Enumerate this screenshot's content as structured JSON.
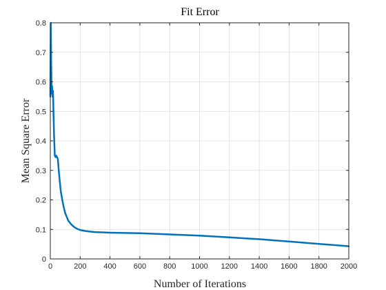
{
  "chart_data": {
    "type": "line",
    "title": "Fit Error",
    "xlabel": "Number of Iterations",
    "ylabel": "Mean Square Error",
    "xlim": [
      0,
      2000
    ],
    "ylim": [
      0,
      0.8
    ],
    "xticks": [
      0,
      200,
      400,
      600,
      800,
      1000,
      1200,
      1400,
      1600,
      1800,
      2000
    ],
    "yticks": [
      0,
      0.1,
      0.2,
      0.3,
      0.4,
      0.5,
      0.6,
      0.7,
      0.8
    ],
    "xtick_labels": [
      "0",
      "200",
      "400",
      "600",
      "800",
      "1000",
      "1200",
      "1400",
      "1600",
      "1800",
      "2000"
    ],
    "ytick_labels": [
      "0",
      "0.1",
      "0.2",
      "0.3",
      "0.4",
      "0.5",
      "0.6",
      "0.7",
      "0.8"
    ],
    "grid": true,
    "series_color": "#0072bd",
    "series": [
      {
        "x": [
          0,
          3,
          6,
          9,
          12,
          15,
          18,
          21,
          25,
          30,
          35,
          40,
          45,
          50,
          55,
          60,
          70,
          80,
          90,
          100,
          120,
          140,
          160,
          180,
          200,
          230,
          260,
          300,
          350,
          400,
          500,
          600,
          700,
          800,
          900,
          1000,
          1100,
          1200,
          1300,
          1400,
          1500,
          1600,
          1700,
          1800,
          1900,
          2000
        ],
        "y": [
          0.55,
          0.8,
          0.66,
          0.56,
          0.585,
          0.55,
          0.57,
          0.5,
          0.42,
          0.35,
          0.345,
          0.35,
          0.345,
          0.34,
          0.31,
          0.28,
          0.23,
          0.2,
          0.175,
          0.155,
          0.13,
          0.117,
          0.108,
          0.102,
          0.098,
          0.095,
          0.093,
          0.091,
          0.09,
          0.089,
          0.088,
          0.087,
          0.085,
          0.083,
          0.081,
          0.079,
          0.076,
          0.073,
          0.07,
          0.067,
          0.063,
          0.059,
          0.055,
          0.051,
          0.047,
          0.043
        ]
      }
    ]
  }
}
